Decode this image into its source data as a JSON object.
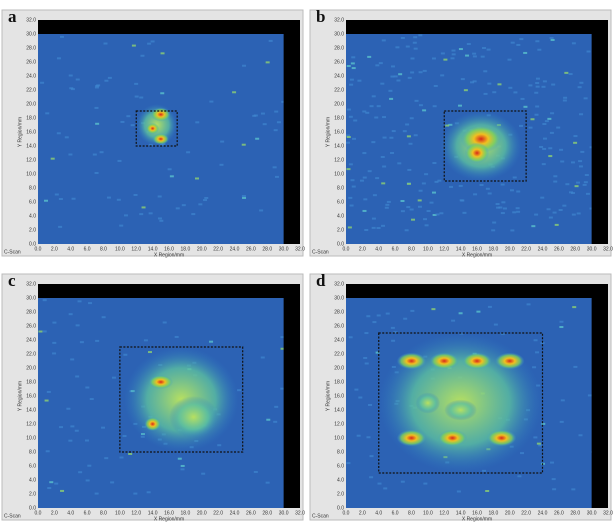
{
  "ticks": [
    "0.0",
    "2.0",
    "4.0",
    "6.0",
    "8.0",
    "10.0",
    "12.0",
    "14.0",
    "16.0",
    "18.0",
    "20.0",
    "22.0",
    "24.0",
    "26.0",
    "28.0",
    "30.0",
    "32.0"
  ],
  "panels": [
    {
      "letter": "a",
      "y_label": "Y Region/mm",
      "x_label": "X Region/mm",
      "mode": "C-Scan"
    },
    {
      "letter": "b",
      "y_label": "Y Region/mm",
      "x_label": "X Region/mm",
      "mode": "C-Scan"
    },
    {
      "letter": "c",
      "y_label": "Y Region/mm",
      "x_label": "X Region/mm",
      "mode": "C-Scan"
    },
    {
      "letter": "d",
      "y_label": "Y Region/mm",
      "x_label": "X Region/mm",
      "mode": "C-Scan"
    }
  ]
}
